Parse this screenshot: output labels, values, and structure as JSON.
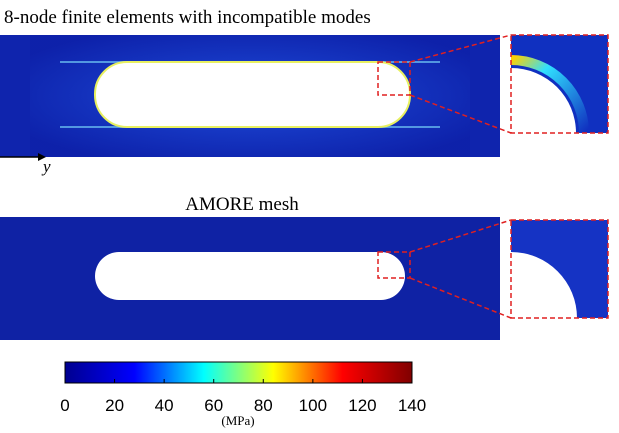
{
  "panels": [
    {
      "title": "8-node finite elements with incompatible modes"
    },
    {
      "title": "AMORE mesh"
    }
  ],
  "axis_label": "y",
  "colorbar": {
    "lim": [
      0,
      140
    ],
    "ticks": [
      0,
      20,
      40,
      60,
      80,
      100,
      120,
      140
    ],
    "unit": "(MPa)",
    "colors": [
      "#00008f",
      "#0000ff",
      "#00ffff",
      "#ffff00",
      "#ff0000",
      "#800000"
    ]
  }
}
